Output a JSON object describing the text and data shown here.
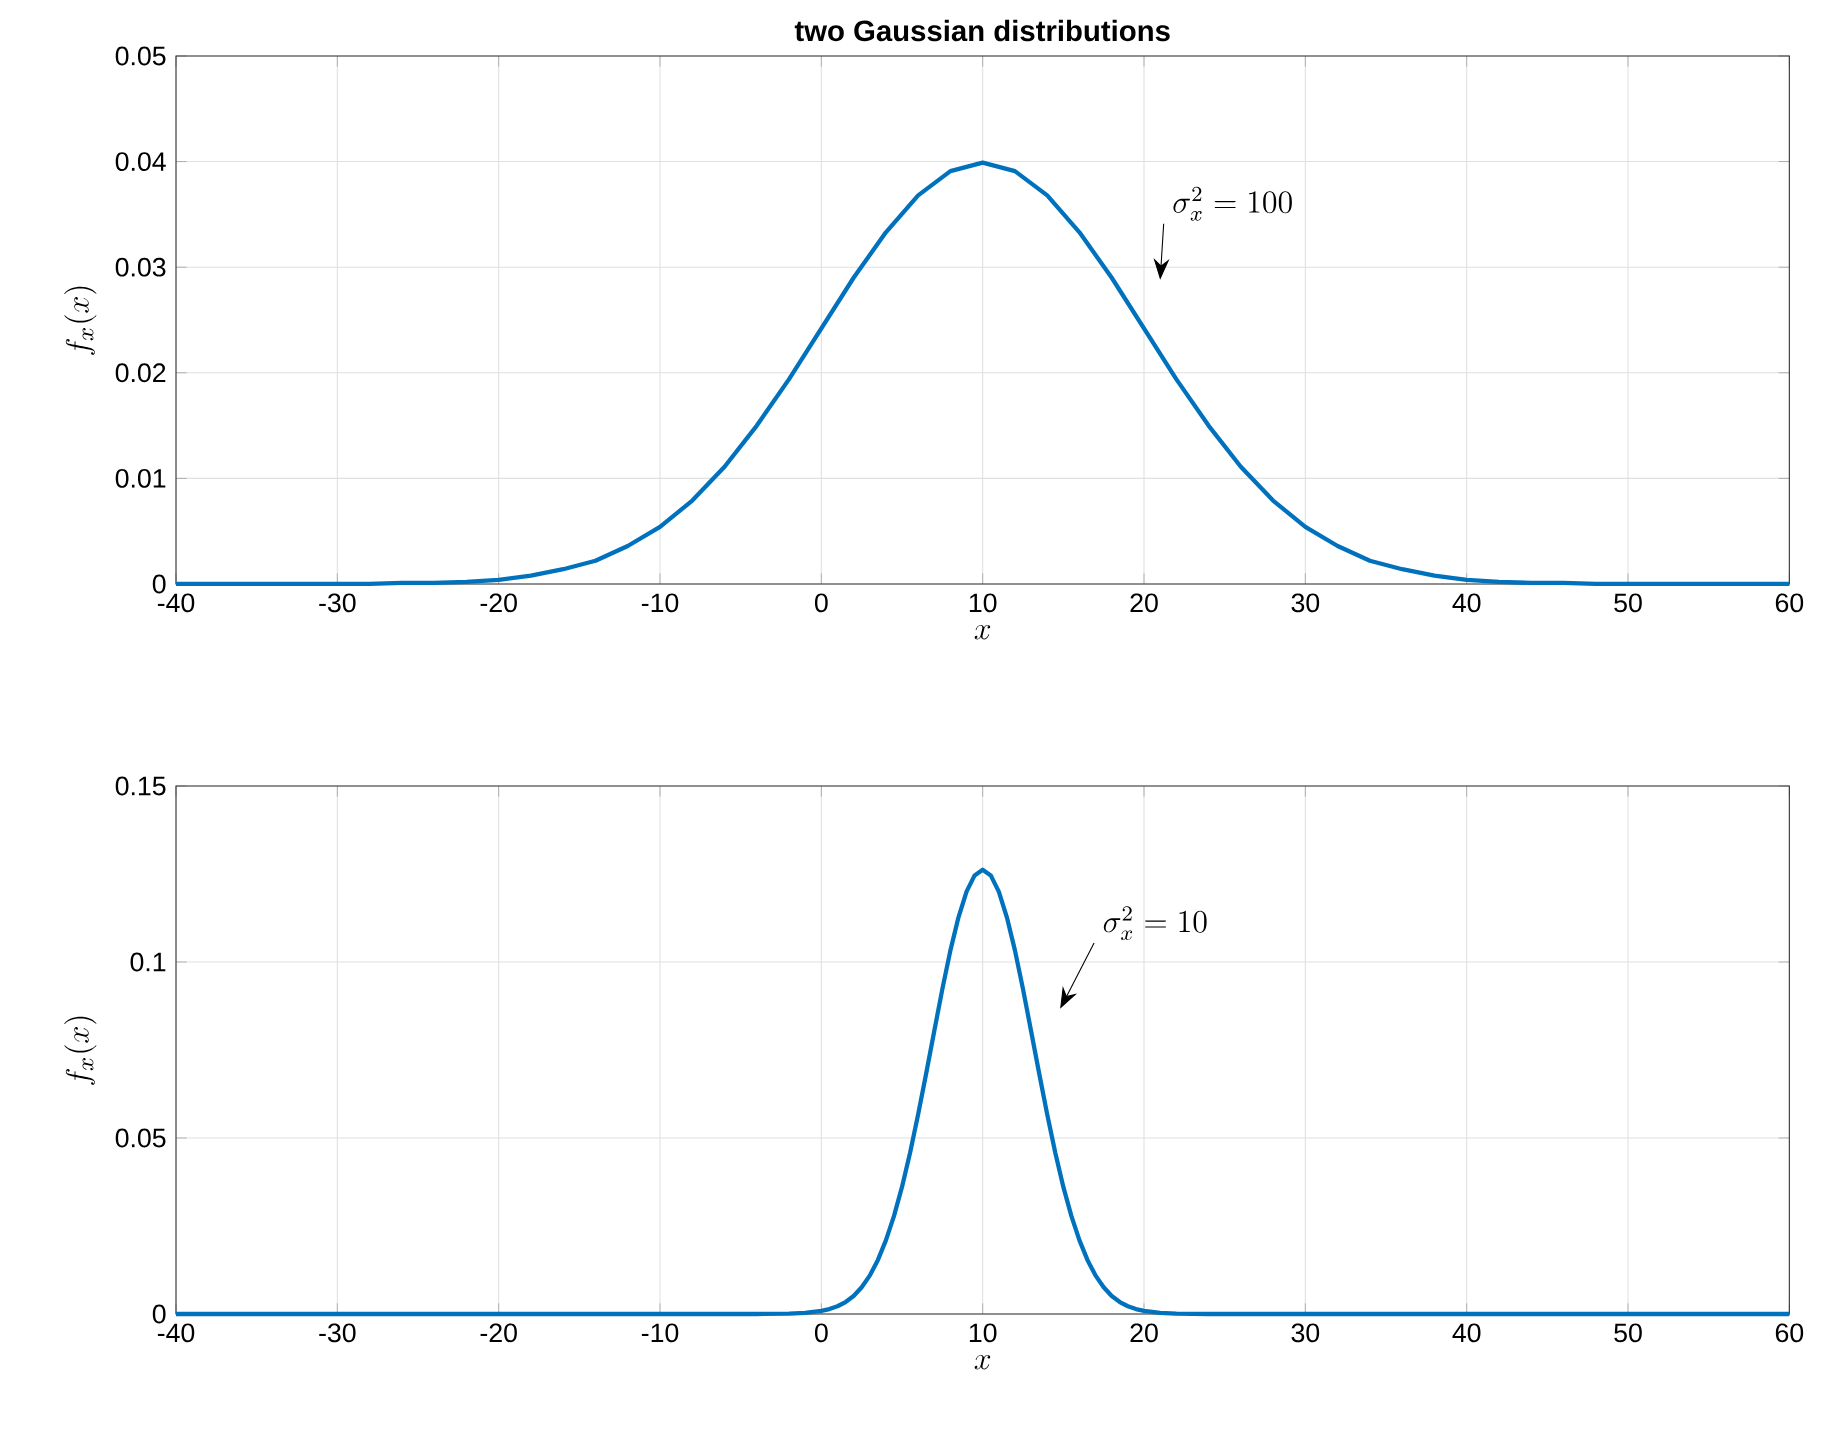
{
  "chart_data": [
    {
      "type": "line",
      "title": "two Gaussian distributions",
      "xlabel": "x",
      "ylabel": "f_x(x)",
      "color": "#0072bd",
      "grid": true,
      "xlim": [
        -40,
        60
      ],
      "ylim": [
        0,
        0.05
      ],
      "xticks": [
        -40,
        -30,
        -20,
        -10,
        0,
        10,
        20,
        30,
        40,
        50,
        60
      ],
      "yticks": [
        0,
        0.01,
        0.02,
        0.03,
        0.04,
        0.05
      ],
      "x": [
        -40,
        -30,
        -28,
        -26,
        -24,
        -22,
        -20,
        -18,
        -16,
        -14,
        -12,
        -10,
        -8,
        -6,
        -4,
        -2,
        0,
        2,
        4,
        6,
        8,
        10,
        12,
        14,
        16,
        18,
        20,
        22,
        24,
        26,
        28,
        30,
        32,
        34,
        36,
        38,
        40,
        42,
        44,
        46,
        48,
        50,
        60
      ],
      "values": [
        0,
        0,
        0,
        0.0001,
        0.0001,
        0.0002,
        0.0004,
        0.0008,
        0.0014,
        0.0022,
        0.0036,
        0.0054,
        0.0079,
        0.0111,
        0.015,
        0.0194,
        0.0242,
        0.029,
        0.0333,
        0.0368,
        0.0391,
        0.0399,
        0.0391,
        0.0368,
        0.0333,
        0.029,
        0.0242,
        0.0194,
        0.015,
        0.0111,
        0.0079,
        0.0054,
        0.0036,
        0.0022,
        0.0014,
        0.0008,
        0.0004,
        0.0002,
        0.0001,
        0.0001,
        0,
        0,
        0
      ],
      "annotations": [
        "\\sigma_x^2 = 100"
      ]
    },
    {
      "type": "line",
      "xlabel": "x",
      "ylabel": "f_x(x)",
      "color": "#0072bd",
      "grid": true,
      "xlim": [
        -40,
        60
      ],
      "ylim": [
        0,
        0.15
      ],
      "xticks": [
        -40,
        -30,
        -20,
        -10,
        0,
        10,
        20,
        30,
        40,
        50,
        60
      ],
      "yticks": [
        0,
        0.05,
        0.1,
        0.15
      ],
      "x": [
        -40,
        -10,
        -4,
        -2,
        -1,
        0,
        0.5,
        1,
        1.5,
        2,
        2.5,
        3,
        3.5,
        4,
        4.5,
        5,
        5.5,
        6,
        6.5,
        7,
        7.5,
        8,
        8.5,
        9,
        9.5,
        10,
        10.5,
        11,
        11.5,
        12,
        12.5,
        13,
        13.5,
        14,
        14.5,
        15,
        15.5,
        16,
        16.5,
        17,
        17.5,
        18,
        18.5,
        19,
        19.5,
        20,
        21,
        22,
        24,
        30,
        60
      ],
      "values": [
        0,
        0,
        0,
        0.0001,
        0.0003,
        0.0009,
        0.0014,
        0.0022,
        0.0034,
        0.0051,
        0.0076,
        0.0109,
        0.0153,
        0.0209,
        0.0278,
        0.0361,
        0.0458,
        0.0567,
        0.0684,
        0.0804,
        0.0923,
        0.1033,
        0.1127,
        0.12,
        0.1246,
        0.1262,
        0.1246,
        0.12,
        0.1127,
        0.1033,
        0.0923,
        0.0804,
        0.0684,
        0.0567,
        0.0458,
        0.0361,
        0.0278,
        0.0209,
        0.0153,
        0.0109,
        0.0076,
        0.0051,
        0.0034,
        0.0022,
        0.0014,
        0.0009,
        0.0003,
        0.0001,
        0,
        0,
        0
      ],
      "annotations": [
        "\\sigma_x^2 = 10"
      ]
    }
  ]
}
